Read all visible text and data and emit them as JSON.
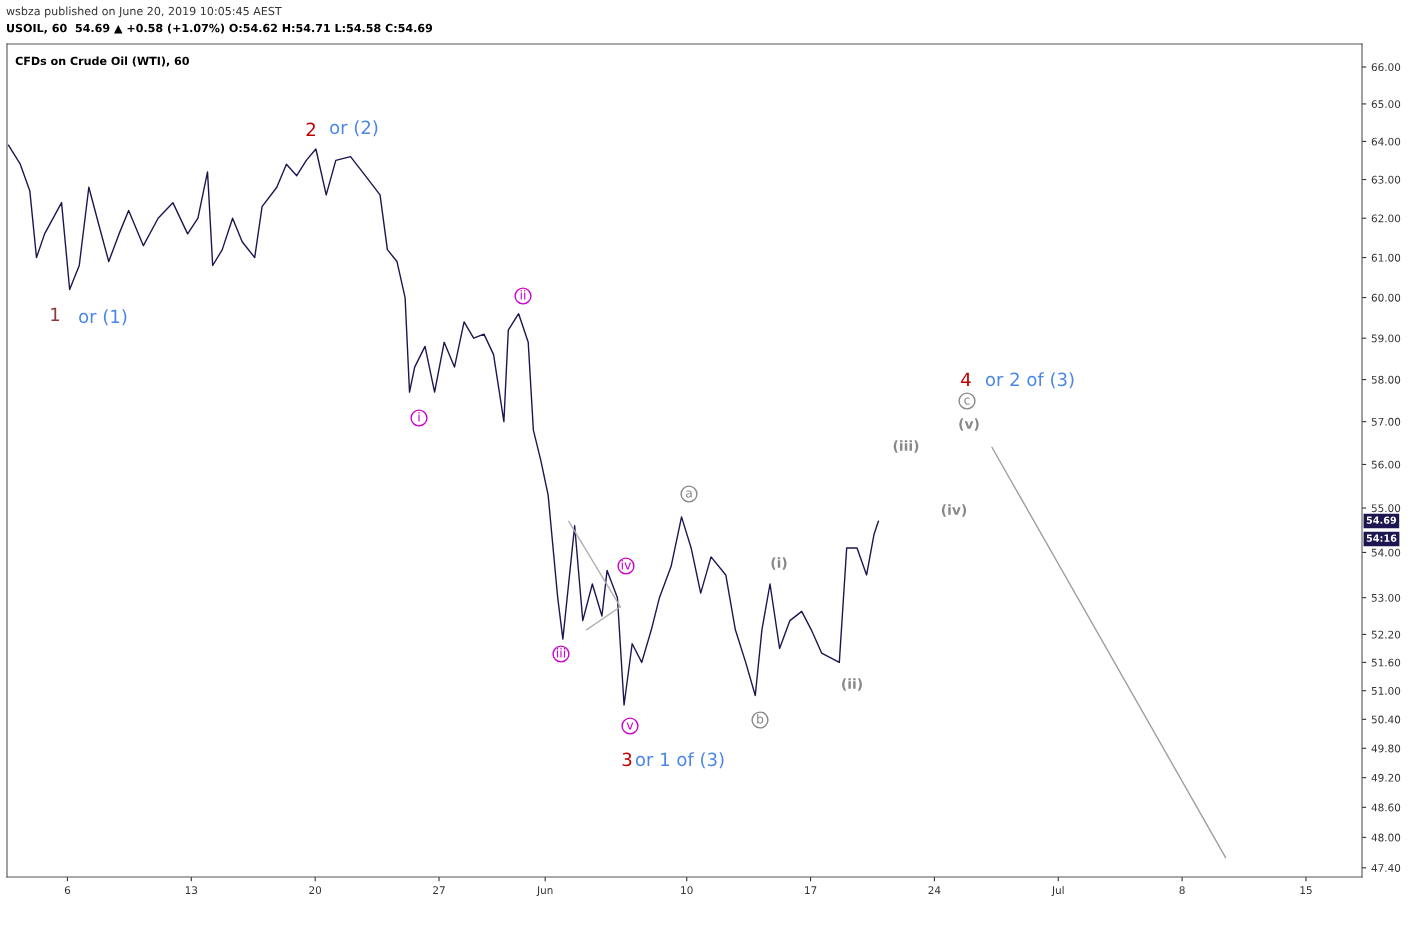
{
  "chart_data": {
    "type": "line",
    "title": "CFDs on Crude Oil (WTI), 60",
    "subtitle": "USOIL, 60  54.69 ▲ +0.58 (+1.07%) O:54.62 H:54.71 L:54.58 C:54.69",
    "log": "y",
    "tick_labels": "xy",
    "xlim": [
      "2019-05-02T14:00",
      "2019-07-18T04:00"
    ],
    "ylim": [
      47.22,
      66.63
    ],
    "xticks": [
      {
        "value": "2019-05-06",
        "label": "6"
      },
      {
        "value": "2019-05-13",
        "label": "13"
      },
      {
        "value": "2019-05-20",
        "label": "20"
      },
      {
        "value": "2019-05-27",
        "label": "27"
      },
      {
        "value": "2019-06-02",
        "label": "Jun"
      },
      {
        "value": "2019-06-10",
        "label": "10"
      },
      {
        "value": "2019-06-17",
        "label": "17"
      },
      {
        "value": "2019-06-24",
        "label": "24"
      },
      {
        "value": "2019-07-01",
        "label": "Jul"
      },
      {
        "value": "2019-07-08",
        "label": "8"
      },
      {
        "value": "2019-07-15",
        "label": "15"
      }
    ],
    "yticks": [
      {
        "value": 47.4,
        "label": "47.40"
      },
      {
        "value": 48,
        "label": "48.00"
      },
      {
        "value": 48.6,
        "label": "48.60"
      },
      {
        "value": 49.2,
        "label": "49.20"
      },
      {
        "value": 49.8,
        "label": "49.80"
      },
      {
        "value": 50.4,
        "label": "50.40"
      },
      {
        "value": 51,
        "label": "51.00"
      },
      {
        "value": 51.6,
        "label": "51.60"
      },
      {
        "value": 52.2,
        "label": "52.20"
      },
      {
        "value": 53,
        "label": "53.00"
      },
      {
        "value": 54,
        "label": "54.00"
      },
      {
        "value": 55,
        "label": "55.00"
      },
      {
        "value": 56,
        "label": "56.00"
      },
      {
        "value": 57,
        "label": "57.00"
      },
      {
        "value": 58,
        "label": "58.00"
      },
      {
        "value": 59,
        "label": "59.00"
      },
      {
        "value": 60,
        "label": "60.00"
      },
      {
        "value": 61,
        "label": "61.00"
      },
      {
        "value": 62,
        "label": "62.00"
      },
      {
        "value": 63,
        "label": "63.00"
      },
      {
        "value": 64,
        "label": "64.00"
      },
      {
        "value": 65,
        "label": "65.00"
      },
      {
        "value": 66,
        "label": "66.00"
      }
    ],
    "series": [
      {
        "color": "#1c1650",
        "x": [
          "2019-05-02T16:00",
          "2019-05-03T08:00",
          "2019-05-03T21:00",
          "2019-05-04T06:00",
          "2019-05-04T17:00",
          "2019-05-05T16:00",
          "2019-05-06T03:00",
          "2019-05-06T16:00",
          "2019-05-07T05:00",
          "2019-05-07T19:00",
          "2019-05-08T08:00",
          "2019-05-08T22:00",
          "2019-05-09T11:00",
          "2019-05-10T07:00",
          "2019-05-11T03:00",
          "2019-05-11T23:00",
          "2019-05-12T19:00",
          "2019-05-13T09:00",
          "2019-05-13T22:00",
          "2019-05-14T05:00",
          "2019-05-14T18:00",
          "2019-05-15T08:00",
          "2019-05-15T21:00",
          "2019-05-16T14:00",
          "2019-05-17T00:00",
          "2019-05-17T20:00",
          "2019-05-18T09:00",
          "2019-05-18T23:00",
          "2019-05-19T12:00",
          "2019-05-20T01:00",
          "2019-05-20T15:00",
          "2019-05-21T04:00",
          "2019-05-22T00:00",
          "2019-05-22T20:00",
          "2019-05-23T16:00",
          "2019-05-24T02:00",
          "2019-05-24T15:00",
          "2019-05-25T02:00",
          "2019-05-25T08:00",
          "2019-05-25T15:00",
          "2019-05-26T05:00",
          "2019-05-26T18:00",
          "2019-05-27T07:00",
          "2019-05-27T21:00",
          "2019-05-28T10:00",
          "2019-05-28T23:00",
          "2019-05-29T13:00",
          "2019-05-30T02:00",
          "2019-05-30T16:00",
          "2019-05-30T22:00",
          "2019-05-31T12:00",
          "2019-06-01T01:00",
          "2019-06-01T08:00",
          "2019-06-01T18:00",
          "2019-06-02T04:00",
          "2019-06-02T17:00",
          "2019-06-03T00:00",
          "2019-06-03T16:00",
          "2019-06-04T03:00",
          "2019-06-04T16:00",
          "2019-06-05T05:00",
          "2019-06-05T12:00",
          "2019-06-06T02:00",
          "2019-06-06T11:00",
          "2019-06-06T22:00",
          "2019-06-07T11:00",
          "2019-06-08T00:00",
          "2019-06-08T11:00",
          "2019-06-09T03:00",
          "2019-06-09T17:00",
          "2019-06-10T06:00",
          "2019-06-10T19:00",
          "2019-06-11T09:00",
          "2019-06-12T05:00",
          "2019-06-12T18:00",
          "2019-06-13T08:00",
          "2019-06-13T21:00",
          "2019-06-14T06:00",
          "2019-06-14T17:00",
          "2019-06-15T06:00",
          "2019-06-15T20:00",
          "2019-06-16T12:00",
          "2019-06-17T01:00",
          "2019-06-17T15:00",
          "2019-06-18T15:00",
          "2019-06-19T01:00",
          "2019-06-19T15:00",
          "2019-06-20T04:00",
          "2019-06-20T14:00",
          "2019-06-20T20:00"
        ],
        "values": [
          63.9,
          63.4,
          62.7,
          61.0,
          61.6,
          62.4,
          60.2,
          60.8,
          62.8,
          61.8,
          60.9,
          61.6,
          62.2,
          61.3,
          62.0,
          62.4,
          61.6,
          62.0,
          63.2,
          60.8,
          61.2,
          62.0,
          61.4,
          61.0,
          62.3,
          62.8,
          63.4,
          63.1,
          63.5,
          63.8,
          62.6,
          63.5,
          63.6,
          63.1,
          62.6,
          61.2,
          60.9,
          60.0,
          57.7,
          58.3,
          58.8,
          57.7,
          58.9,
          58.3,
          59.4,
          59.0,
          59.1,
          58.6,
          57.0,
          59.2,
          59.6,
          58.9,
          56.8,
          56.1,
          55.3,
          53.0,
          52.1,
          54.6,
          52.5,
          53.3,
          52.6,
          53.6,
          53.0,
          50.7,
          52.0,
          51.6,
          52.3,
          53.0,
          53.7,
          54.8,
          54.1,
          53.1,
          53.9,
          53.5,
          52.3,
          51.6,
          50.9,
          52.3,
          53.3,
          51.9,
          52.5,
          52.7,
          52.3,
          51.8,
          51.6,
          54.1,
          54.1,
          53.5,
          54.4,
          54.7
        ]
      },
      {
        "color": "#b0b0b0",
        "x": [
          "2019-06-03T08:00",
          "2019-06-06T06:00"
        ],
        "values": [
          54.7,
          52.8
        ]
      },
      {
        "color": "#b0b0b0",
        "x": [
          "2019-06-04T08:00",
          "2019-06-06T06:00"
        ],
        "values": [
          52.3,
          52.8
        ]
      },
      {
        "color": "#9e9e9e",
        "x": [
          "2019-06-27T06:00",
          "2019-07-10T11:00"
        ],
        "values": [
          56.4,
          47.6
        ]
      }
    ],
    "annotations": [
      "wsbza published on June 20, 2019 10:05:45 AEST",
      "54:16",
      "54.69",
      "1",
      "or (1)",
      "2",
      "or (2)",
      "i",
      "ii",
      "iii",
      "iv",
      "v",
      "3",
      "or 1 of (3)",
      "a",
      "b",
      "(i)",
      "(ii)",
      "(iii)",
      "(iv)",
      "(v)",
      "c",
      "4",
      "or 2 of (3)"
    ]
  }
}
